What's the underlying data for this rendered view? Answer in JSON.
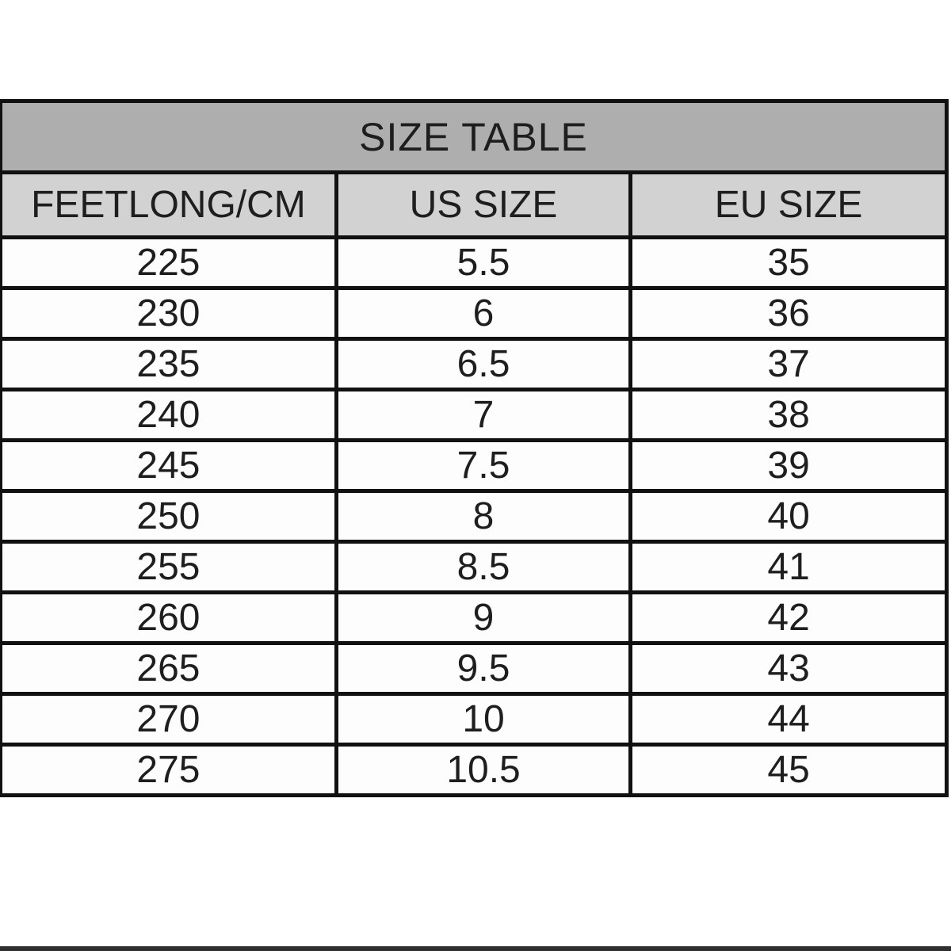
{
  "colors": {
    "title_bg": "#aeaeae",
    "header_bg": "#d2d2d2",
    "row_bg": "#fdfdfd",
    "border": "#111111",
    "text": "#1e1e1e",
    "page_bg": "#ffffff",
    "bottom_strip": "#2f2f2f"
  },
  "chart_data": {
    "type": "table",
    "title": "SIZE TABLE",
    "columns": [
      "FEETLONG/CM",
      "US SIZE",
      "EU SIZE"
    ],
    "column_width_pct": [
      35.5,
      31.1,
      33.4
    ],
    "rows": [
      [
        "225",
        "5.5",
        "35"
      ],
      [
        "230",
        "6",
        "36"
      ],
      [
        "235",
        "6.5",
        "37"
      ],
      [
        "240",
        "7",
        "38"
      ],
      [
        "245",
        "7.5",
        "39"
      ],
      [
        "250",
        "8",
        "40"
      ],
      [
        "255",
        "8.5",
        "41"
      ],
      [
        "260",
        "9",
        "42"
      ],
      [
        "265",
        "9.5",
        "43"
      ],
      [
        "270",
        "10",
        "44"
      ],
      [
        "275",
        "10.5",
        "45"
      ]
    ]
  }
}
